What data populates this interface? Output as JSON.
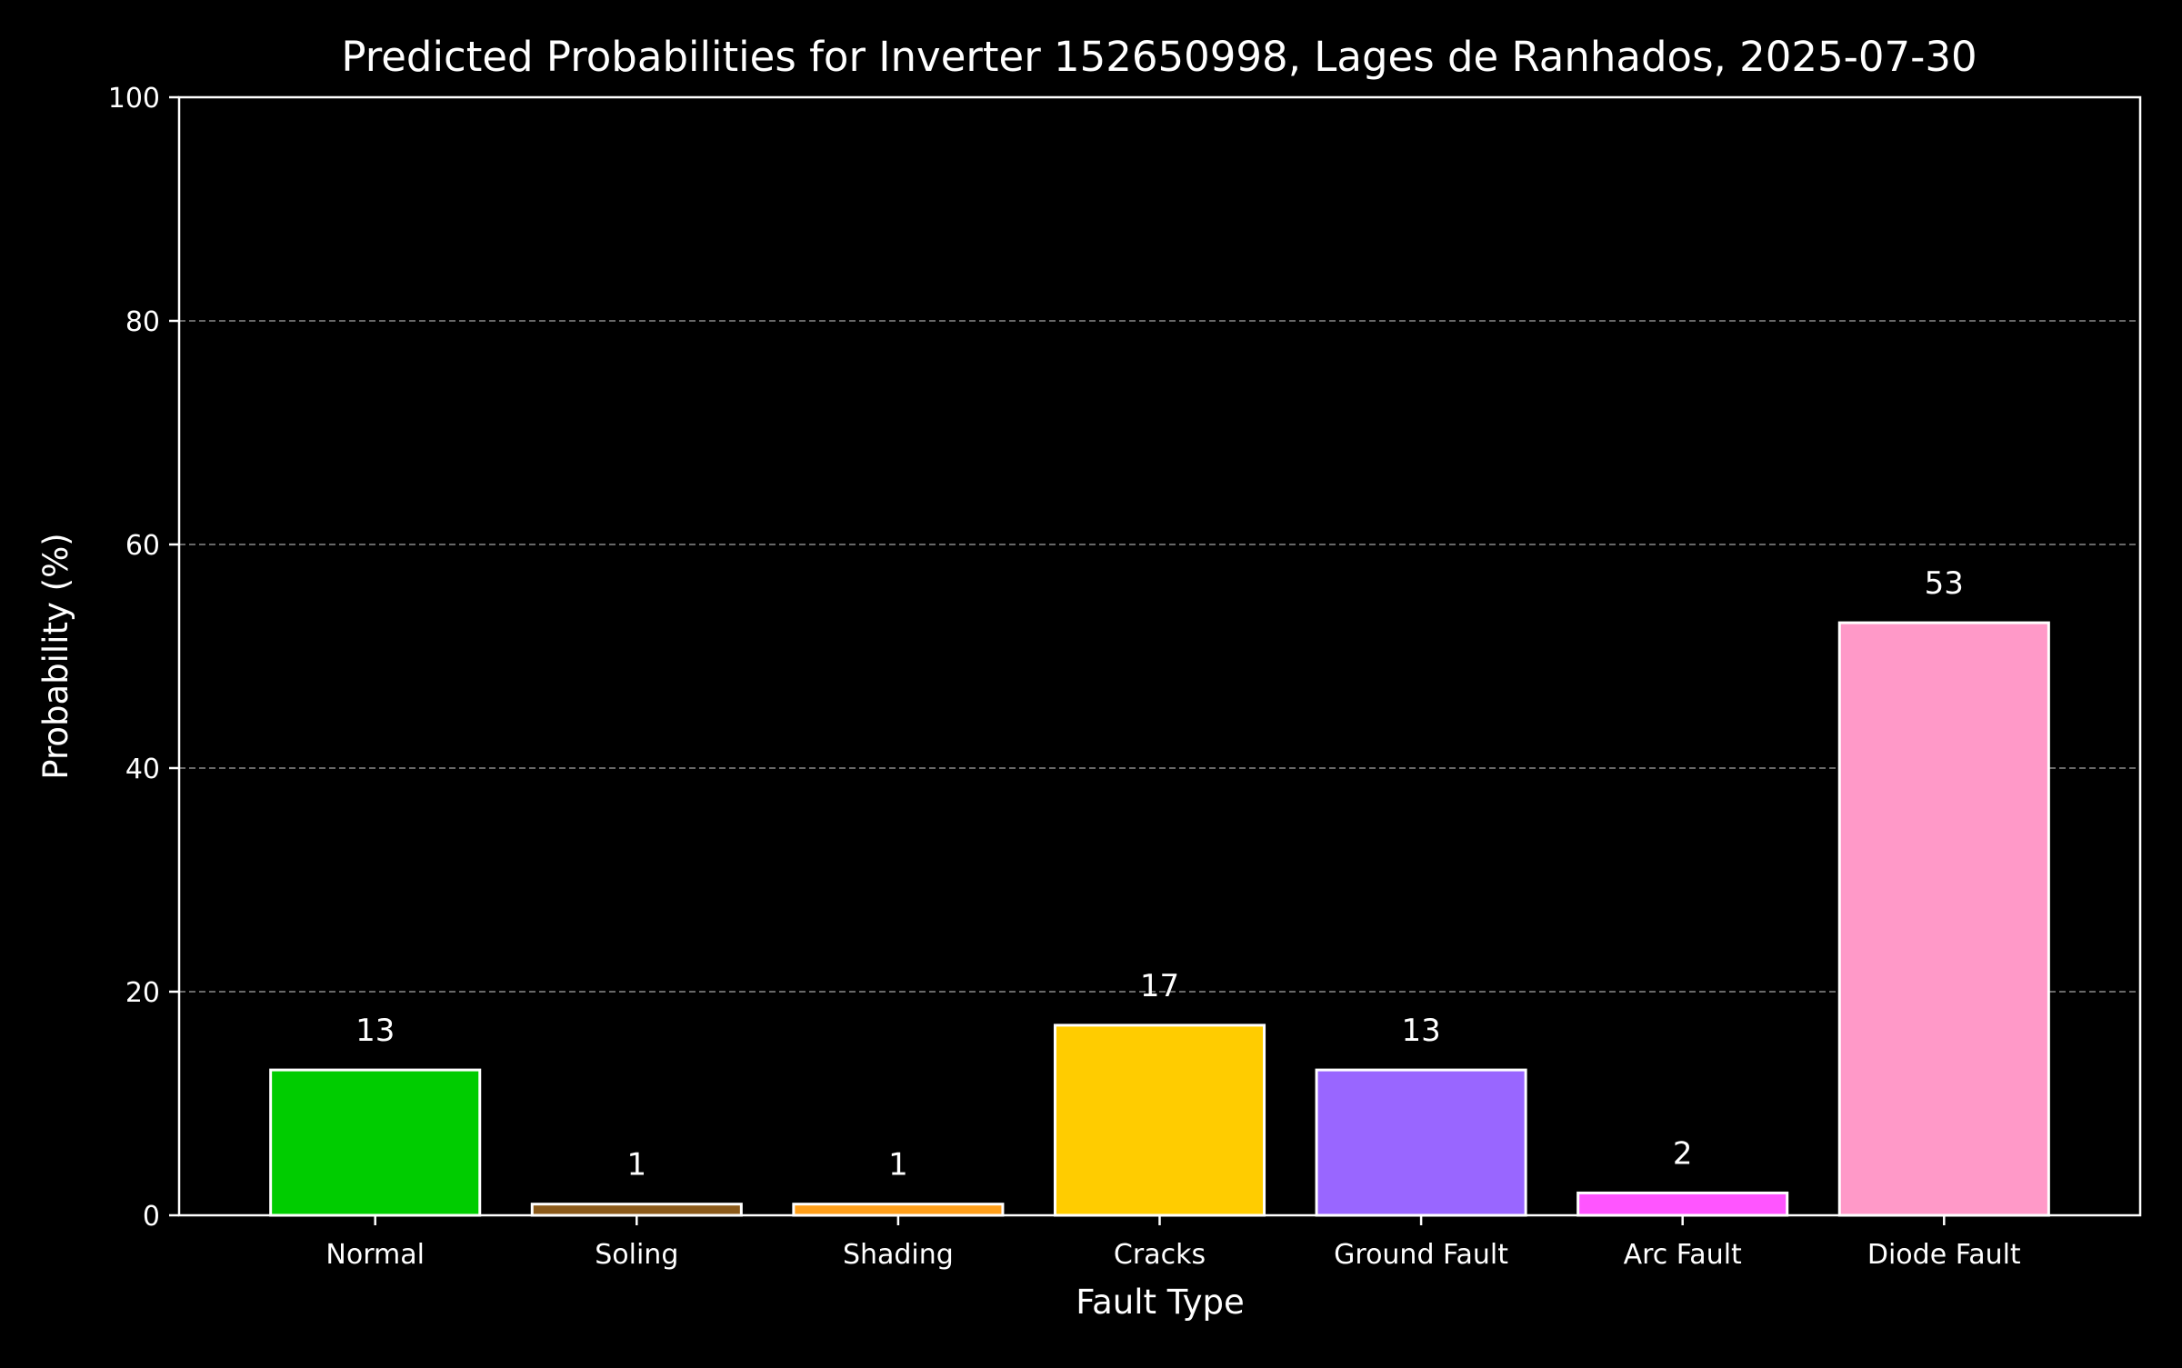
{
  "chart_data": {
    "type": "bar",
    "title": "Predicted Probabilities for Inverter 152650998, Lages de Ranhados, 2025-07-30",
    "xlabel": "Fault Type",
    "ylabel": "Probability (%)",
    "categories": [
      "Normal",
      "Soling",
      "Shading",
      "Cracks",
      "Ground Fault",
      "Arc Fault",
      "Diode Fault"
    ],
    "values": [
      13,
      1,
      1,
      17,
      13,
      2,
      53
    ],
    "value_labels": [
      "13",
      "1",
      "1",
      "17",
      "13",
      "2",
      "53"
    ],
    "colors": [
      "#00cc00",
      "#8b5a1a",
      "#ff9f1a",
      "#ffcc00",
      "#9966ff",
      "#ff55ff",
      "#ff99c8"
    ],
    "ylim": [
      0,
      100
    ],
    "yticks": [
      0,
      20,
      40,
      60,
      80,
      100
    ],
    "ytick_labels": [
      "0",
      "20",
      "40",
      "60",
      "80",
      "100"
    ],
    "grid": "y-dashed",
    "background": "#000000",
    "foreground": "#ffffff"
  }
}
